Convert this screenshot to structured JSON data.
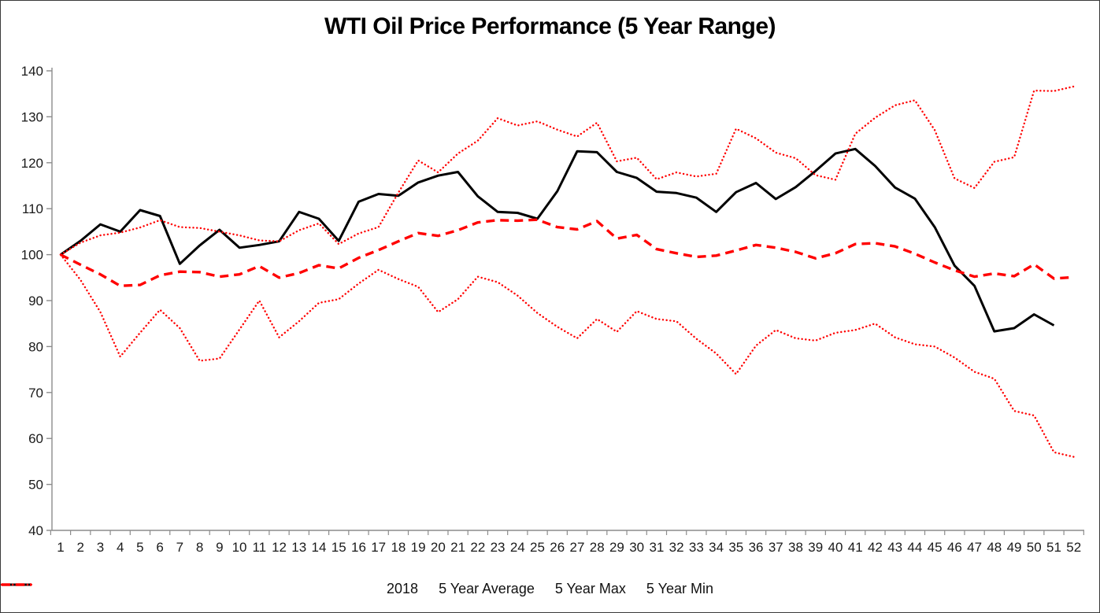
{
  "title": "WTI Oil Price Performance (5 Year Range)",
  "chart_data": {
    "type": "line",
    "title": "WTI Oil Price Performance (5 Year Range)",
    "xlabel": "",
    "ylabel": "",
    "x_tick_labels": [
      1,
      2,
      3,
      4,
      5,
      6,
      7,
      8,
      9,
      10,
      11,
      12,
      13,
      14,
      15,
      16,
      17,
      18,
      19,
      20,
      21,
      22,
      23,
      24,
      25,
      26,
      27,
      28,
      29,
      30,
      31,
      32,
      33,
      34,
      35,
      36,
      37,
      38,
      39,
      40,
      41,
      42,
      43,
      44,
      45,
      46,
      47,
      48,
      49,
      50,
      51,
      52
    ],
    "y_tick_labels": [
      40,
      50,
      60,
      70,
      80,
      90,
      100,
      110,
      120,
      130,
      140
    ],
    "ylim": [
      40,
      140
    ],
    "xlim": [
      1,
      52
    ],
    "grid": false,
    "legend_position": "bottom",
    "series": [
      {
        "name": "2018",
        "color": "#000000",
        "style": "solid",
        "values": [
          100,
          103,
          106.6,
          105,
          109.7,
          108.4,
          98,
          102,
          105.4,
          101.5,
          102.1,
          102.9,
          109.3,
          107.8,
          103,
          111.5,
          113.2,
          112.8,
          115.7,
          117.2,
          118,
          112.7,
          109.3,
          109.1,
          107.8,
          113.8,
          122.5,
          122.3,
          118,
          116.7,
          113.7,
          113.4,
          112.4,
          109.3,
          113.6,
          115.6,
          112.1,
          114.7,
          118.2,
          122,
          123,
          119.3,
          114.6,
          112.2,
          106,
          97.6,
          93.2,
          83.3,
          84,
          87,
          84.6
        ]
      },
      {
        "name": "5 Year Average",
        "color": "#FF0000",
        "style": "dashed",
        "values": [
          100,
          97.8,
          95.7,
          93.2,
          93.4,
          95.5,
          96.3,
          96.2,
          95.2,
          95.7,
          97.5,
          95,
          96,
          97.7,
          97,
          99.3,
          101,
          102.9,
          104.7,
          104.1,
          105.3,
          107,
          107.5,
          107.4,
          107.6,
          106,
          105.5,
          107.3,
          103.5,
          104.3,
          101.2,
          100.3,
          99.5,
          99.8,
          100.9,
          102.1,
          101.5,
          100.6,
          99.2,
          100.3,
          102.3,
          102.5,
          101.8,
          100.2,
          98.3,
          96.6,
          95.2,
          95.9,
          95.3,
          97.9,
          94.8,
          95.1
        ]
      },
      {
        "name": "5 Year Max",
        "color": "#FF0000",
        "style": "dotted",
        "values": [
          100,
          102.6,
          104.2,
          104.8,
          105.9,
          107.5,
          106,
          105.8,
          105,
          104.2,
          103.1,
          102.9,
          105.3,
          106.8,
          102.3,
          104.6,
          106,
          113.5,
          120.5,
          117.9,
          122,
          124.8,
          129.7,
          128.1,
          129,
          127.2,
          125.7,
          128.7,
          120.3,
          121.1,
          116.4,
          117.9,
          117,
          117.6,
          127.4,
          125.3,
          122.2,
          121,
          117.3,
          116.3,
          126.3,
          129.8,
          132.5,
          133.6,
          127.1,
          116.6,
          114.5,
          120.2,
          121.2,
          135.7,
          135.6,
          136.6
        ]
      },
      {
        "name": "5 Year Min",
        "color": "#FF0000",
        "style": "dotted",
        "values": [
          100,
          94.5,
          87.5,
          77.8,
          83,
          88,
          84,
          76.9,
          77.4,
          83.7,
          90,
          82,
          85.5,
          89.5,
          90.3,
          93.7,
          96.7,
          94.7,
          93,
          87.5,
          90.3,
          95.2,
          94,
          91.1,
          87.3,
          84.3,
          81.8,
          86,
          83.2,
          87.7,
          86,
          85.5,
          81.7,
          78.5,
          74,
          80.2,
          83.6,
          81.8,
          81.3,
          83,
          83.6,
          85,
          82,
          80.5,
          80,
          77.6,
          74.5,
          73,
          66,
          65,
          57,
          56
        ]
      }
    ]
  }
}
